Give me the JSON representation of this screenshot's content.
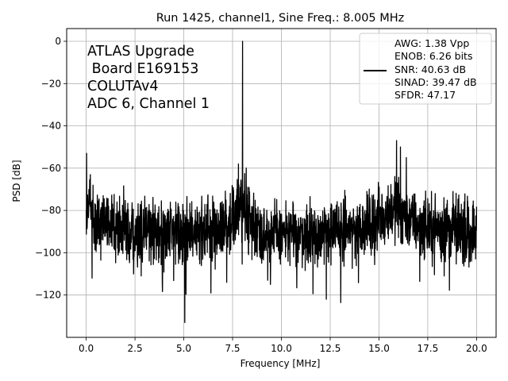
{
  "chart_data": {
    "type": "line",
    "title": "Run 1425, channel1, Sine Freq.: 8.005 MHz",
    "xlabel": "Frequency [MHz]",
    "ylabel": "PSD [dB]",
    "xlim": [
      -1.0,
      21.0
    ],
    "ylim": [
      -140,
      6
    ],
    "xticks": [
      0.0,
      2.5,
      5.0,
      7.5,
      10.0,
      12.5,
      15.0,
      17.5,
      20.0
    ],
    "xtick_labels": [
      "0.0",
      "2.5",
      "5.0",
      "7.5",
      "10.0",
      "12.5",
      "15.0",
      "17.5",
      "20.0"
    ],
    "yticks": [
      0,
      -20,
      -40,
      -60,
      -80,
      -100,
      -120
    ],
    "ytick_labels": [
      "0",
      "−20",
      "−40",
      "−60",
      "−80",
      "−100",
      "−120"
    ],
    "grid": true,
    "line_color": "#000000",
    "annotation": [
      "ATLAS Upgrade",
      " Board E169153",
      "COLUTAv4",
      "ADC 6, Channel 1"
    ],
    "legend": {
      "placement": "upper right",
      "lines": [
        "AWG: 1.38 Vpp",
        "ENOB: 6.26 bits",
        "SNR: 40.63 dB",
        "SINAD: 39.47 dB",
        "SFDR: 47.17"
      ]
    },
    "series": [
      {
        "noise_floor_x": [
          0,
          0.3,
          1.0,
          2.0,
          3.0,
          4.0,
          5.0,
          6.0,
          7.0,
          7.6,
          7.9,
          8.1,
          8.4,
          9.0,
          10.0,
          11.0,
          12.0,
          13.0,
          14.0,
          15.0,
          15.6,
          16.0,
          16.4,
          17.0,
          18.0,
          19.0,
          20.0
        ],
        "noise_floor_y": [
          -70,
          -73,
          -77,
          -80,
          -82,
          -83,
          -82,
          -81,
          -80,
          -75,
          -70,
          -70,
          -76,
          -82,
          -83,
          -83,
          -82,
          -81,
          -80,
          -76,
          -72,
          -70,
          -75,
          -79,
          -80,
          -80,
          -82
        ],
        "peaks": [
          {
            "x": 8.005,
            "y": 0
          },
          {
            "x": 0.02,
            "y": -53
          },
          {
            "x": 7.8,
            "y": -58
          },
          {
            "x": 8.2,
            "y": -60
          },
          {
            "x": 15.9,
            "y": -47
          },
          {
            "x": 16.1,
            "y": -50
          },
          {
            "x": 16.4,
            "y": -55
          }
        ],
        "dips": [
          {
            "x": 5.05,
            "y": -133
          },
          {
            "x": 12.3,
            "y": -122
          },
          {
            "x": 3.9,
            "y": -115
          },
          {
            "x": 7.2,
            "y": -114
          },
          {
            "x": 9.3,
            "y": -113
          },
          {
            "x": 0.3,
            "y": -112
          }
        ]
      }
    ]
  }
}
